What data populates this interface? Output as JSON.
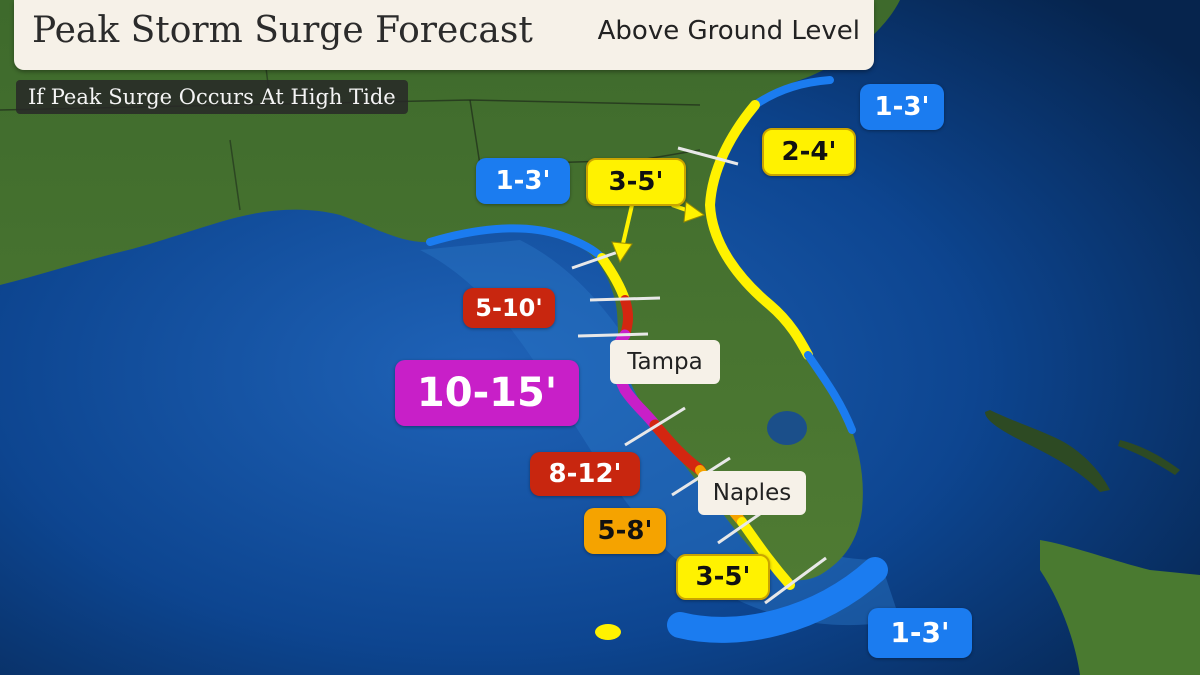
{
  "header": {
    "title": "Peak Storm Surge Forecast",
    "subtitle": "Above Ground Level",
    "note": "If Peak Surge Occurs At High Tide"
  },
  "surge_labels": [
    {
      "id": "atlantic-north",
      "text": "1-3'",
      "level": "blue"
    },
    {
      "id": "northeast-coast",
      "text": "2-4'",
      "level": "yellow"
    },
    {
      "id": "big-bend-west",
      "text": "1-3'",
      "level": "blue"
    },
    {
      "id": "nature-coast",
      "text": "3-5'",
      "level": "yellow"
    },
    {
      "id": "citrus-hernando",
      "text": "5-10'",
      "level": "red"
    },
    {
      "id": "tampa-bay",
      "text": "10-15'",
      "level": "magenta"
    },
    {
      "id": "sarasota-charlotte",
      "text": "8-12'",
      "level": "red"
    },
    {
      "id": "naples-area",
      "text": "5-8'",
      "level": "orange"
    },
    {
      "id": "southwest-tip",
      "text": "3-5'",
      "level": "yellow"
    },
    {
      "id": "florida-keys",
      "text": "1-3'",
      "level": "blue"
    }
  ],
  "cities": [
    {
      "id": "tampa",
      "name": "Tampa"
    },
    {
      "id": "naples",
      "name": "Naples"
    }
  ],
  "colors": {
    "blue": "#1b7cf0",
    "yellow": "#fff200",
    "red": "#c8260f",
    "magenta": "#c81fc8",
    "orange": "#f5a300",
    "land": "#3f6a2c",
    "ocean": "#0b3f86"
  }
}
